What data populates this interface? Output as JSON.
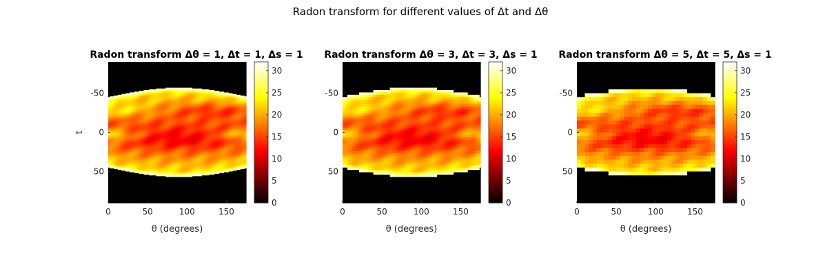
{
  "figure": {
    "title": "Radon transform for different values of Δt and Δθ"
  },
  "colormap": {
    "name": "hot",
    "stops": [
      "#000000",
      "#ff0000",
      "#ffff00",
      "#ffffff"
    ]
  },
  "chart_data": [
    {
      "type": "heatmap",
      "title": "Radon transform Δθ = 1, Δt = 1, Δs = 1",
      "xlabel": "θ (degrees)",
      "ylabel": "t",
      "xlim": [
        0,
        175
      ],
      "ylim": [
        -90,
        90
      ],
      "y_reversed": true,
      "xticks": [
        0,
        50,
        100,
        150
      ],
      "yticks": [
        -50,
        0,
        50
      ],
      "colorbar": {
        "range": [
          0,
          32
        ],
        "ticks": [
          0,
          5,
          10,
          15,
          20,
          25,
          30
        ]
      },
      "delta_theta": 1,
      "delta_t": 1,
      "delta_s": 1
    },
    {
      "type": "heatmap",
      "title": "Radon transform Δθ = 3, Δt = 3, Δs = 1",
      "xlabel": "θ (degrees)",
      "ylabel": "",
      "xlim": [
        0,
        175
      ],
      "ylim": [
        -90,
        90
      ],
      "y_reversed": true,
      "xticks": [
        0,
        50,
        100,
        150
      ],
      "yticks": [
        -50,
        0,
        50
      ],
      "colorbar": {
        "range": [
          0,
          32
        ],
        "ticks": [
          0,
          5,
          10,
          15,
          20,
          25,
          30
        ]
      },
      "delta_theta": 3,
      "delta_t": 3,
      "delta_s": 1
    },
    {
      "type": "heatmap",
      "title": "Radon transform Δθ = 5, Δt = 5, Δs = 1",
      "xlabel": "θ (degrees)",
      "ylabel": "",
      "xlim": [
        0,
        175
      ],
      "ylim": [
        -90,
        90
      ],
      "y_reversed": true,
      "xticks": [
        0,
        50,
        100,
        150
      ],
      "yticks": [
        -50,
        0,
        50
      ],
      "colorbar": {
        "range": [
          0,
          32
        ],
        "ticks": [
          0,
          5,
          10,
          15,
          20,
          25,
          30
        ]
      },
      "delta_theta": 5,
      "delta_t": 5,
      "delta_s": 1
    }
  ]
}
